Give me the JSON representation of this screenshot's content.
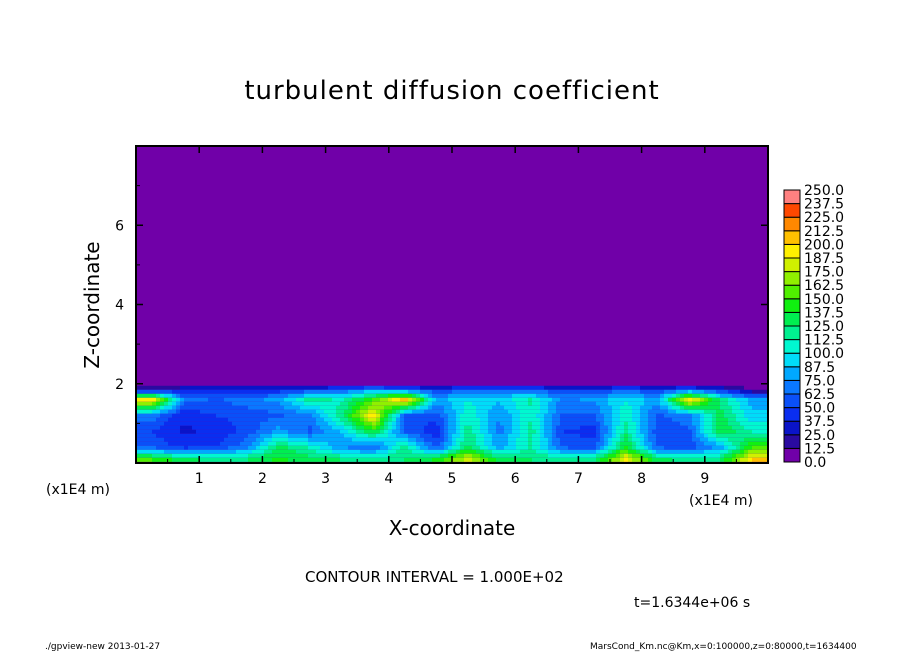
{
  "title": "turbulent diffusion coefficient",
  "contour_interval": "CONTOUR INTERVAL = 1.000E+02",
  "time_label": "t=1.6344e+06 s",
  "footer_left": "./gpview-new  2013-01-27",
  "footer_right": "MarsCond_Km.nc@Km,x=0:100000,z=0:80000,t=1634400",
  "chart_data": {
    "type": "heatmap",
    "title": "turbulent diffusion coefficient",
    "xlabel": "X-coordinate",
    "ylabel": "Z-coordinate",
    "x_unit": "(x1E4 m)",
    "z_unit": "(x1E4 m)",
    "xlim": [
      0,
      10
    ],
    "ylim": [
      0,
      8
    ],
    "xticks": [
      1,
      2,
      3,
      4,
      5,
      6,
      7,
      8,
      9
    ],
    "yticks": [
      2,
      4,
      6
    ],
    "colorbar": {
      "levels": [
        "0.0",
        "12.5",
        "25.0",
        "37.5",
        "50.0",
        "62.5",
        "75.0",
        "87.5",
        "100.0",
        "112.5",
        "125.0",
        "137.5",
        "150.0",
        "162.5",
        "175.0",
        "187.5",
        "200.0",
        "212.5",
        "225.0",
        "237.5",
        "250.0"
      ],
      "colors": [
        "#7000a8",
        "#2a0aa0",
        "#0a14c8",
        "#0a2ef0",
        "#0a50f8",
        "#0a78ff",
        "#00a8ff",
        "#00dcf8",
        "#00f8d0",
        "#00f090",
        "#00ee50",
        "#10f010",
        "#50f000",
        "#90f000",
        "#d0f000",
        "#fff000",
        "#ffc000",
        "#ff8800",
        "#ff4800",
        "#ff1818"
      ],
      "top_color": "#ff8080"
    },
    "approx_field": {
      "x": [
        0.25,
        0.75,
        1.25,
        1.75,
        2.25,
        2.75,
        3.25,
        3.75,
        4.25,
        4.75,
        5.25,
        5.75,
        6.25,
        6.75,
        7.25,
        7.75,
        8.25,
        8.75,
        9.25,
        9.75
      ],
      "z": [
        0.1,
        0.4,
        0.8,
        1.2,
        1.6,
        1.85,
        2.0
      ],
      "values": [
        [
          150,
          130,
          120,
          125,
          140,
          130,
          125,
          120,
          125,
          140,
          180,
          130,
          125,
          120,
          125,
          190,
          130,
          120,
          125,
          200
        ],
        [
          60,
          45,
          50,
          70,
          130,
          110,
          75,
          60,
          120,
          55,
          130,
          80,
          115,
          60,
          55,
          140,
          60,
          55,
          80,
          150
        ],
        [
          50,
          35,
          40,
          55,
          80,
          60,
          90,
          140,
          60,
          40,
          120,
          70,
          120,
          50,
          45,
          120,
          55,
          60,
          140,
          110
        ],
        [
          70,
          40,
          50,
          55,
          60,
          70,
          120,
          200,
          60,
          55,
          110,
          75,
          110,
          60,
          60,
          110,
          60,
          70,
          130,
          90
        ],
        [
          200,
          70,
          60,
          70,
          80,
          120,
          110,
          150,
          210,
          80,
          100,
          90,
          115,
          70,
          80,
          100,
          80,
          200,
          120,
          80
        ],
        [
          20,
          40,
          40,
          40,
          40,
          50,
          60,
          80,
          60,
          50,
          60,
          70,
          60,
          50,
          50,
          60,
          50,
          60,
          40,
          10
        ],
        [
          0,
          0,
          0,
          0,
          0,
          0,
          0,
          0,
          0,
          0,
          0,
          0,
          0,
          0,
          0,
          0,
          0,
          0,
          0,
          0
        ]
      ],
      "above_value": 0
    }
  }
}
